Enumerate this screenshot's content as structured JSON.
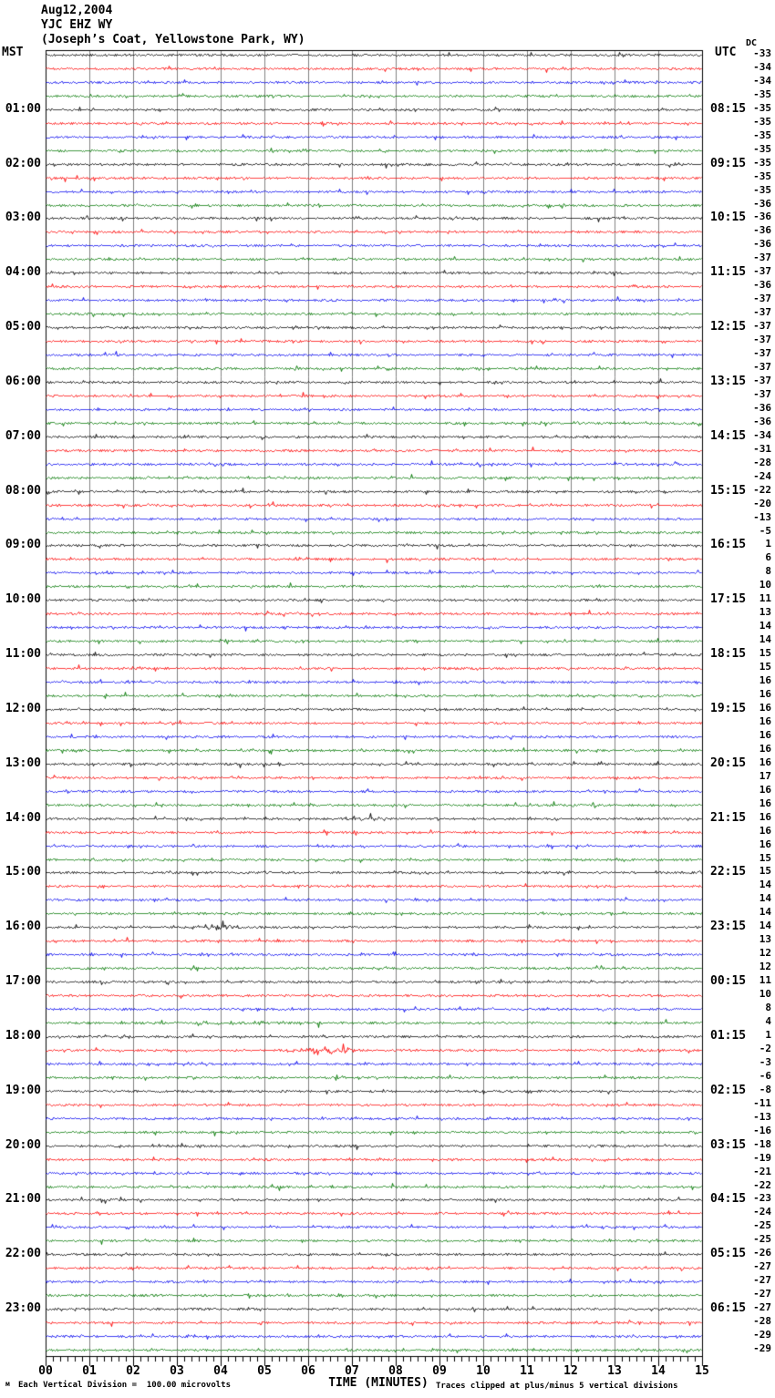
{
  "title": {
    "date": "Aug12,2004",
    "station": "YJC EHZ WY",
    "location": "(Joseph’s Coat, Yellowstone Park, WY)"
  },
  "header": {
    "left": "MST",
    "right": "UTC",
    "dc": "DC"
  },
  "x_axis": {
    "title": "TIME (MINUTES)",
    "ticks": [
      "00",
      "01",
      "02",
      "03",
      "04",
      "05",
      "06",
      "07",
      "08",
      "09",
      "10",
      "11",
      "12",
      "13",
      "14",
      "15"
    ]
  },
  "footer": {
    "scale_note": "Each Vertical Division =  100.00 microvolts",
    "clip_note": "Traces clipped at plus/minus 5 vertical divisions",
    "corner_mark": "м"
  },
  "colors": {
    "black": "#000000",
    "red": "#ff0000",
    "blue": "#0000ee",
    "green": "#007700",
    "grid": "#808080",
    "border": "#000000",
    "background": "#ffffff"
  },
  "chart_data": {
    "type": "line",
    "x_range_minutes": [
      0,
      15
    ],
    "lines_per_hour": 4,
    "trace_color_cycle": [
      "black",
      "red",
      "blue",
      "green"
    ],
    "rows": [
      {
        "color": "black",
        "mst": "",
        "utc": "",
        "dc": -33
      },
      {
        "color": "red",
        "mst": "",
        "utc": "",
        "dc": -34
      },
      {
        "color": "blue",
        "mst": "",
        "utc": "",
        "dc": -34
      },
      {
        "color": "green",
        "mst": "",
        "utc": "",
        "dc": -35
      },
      {
        "color": "black",
        "mst": "01:00",
        "utc": "08:15",
        "dc": -35
      },
      {
        "color": "red",
        "mst": "",
        "utc": "",
        "dc": -35
      },
      {
        "color": "blue",
        "mst": "",
        "utc": "",
        "dc": -35
      },
      {
        "color": "green",
        "mst": "",
        "utc": "",
        "dc": -35
      },
      {
        "color": "black",
        "mst": "02:00",
        "utc": "09:15",
        "dc": -35
      },
      {
        "color": "red",
        "mst": "",
        "utc": "",
        "dc": -35
      },
      {
        "color": "blue",
        "mst": "",
        "utc": "",
        "dc": -35
      },
      {
        "color": "green",
        "mst": "",
        "utc": "",
        "dc": -36
      },
      {
        "color": "black",
        "mst": "03:00",
        "utc": "10:15",
        "dc": -36
      },
      {
        "color": "red",
        "mst": "",
        "utc": "",
        "dc": -36
      },
      {
        "color": "blue",
        "mst": "",
        "utc": "",
        "dc": -36
      },
      {
        "color": "green",
        "mst": "",
        "utc": "",
        "dc": -37
      },
      {
        "color": "black",
        "mst": "04:00",
        "utc": "11:15",
        "dc": -37
      },
      {
        "color": "red",
        "mst": "",
        "utc": "",
        "dc": -36
      },
      {
        "color": "blue",
        "mst": "",
        "utc": "",
        "dc": -37
      },
      {
        "color": "green",
        "mst": "",
        "utc": "",
        "dc": -37
      },
      {
        "color": "black",
        "mst": "05:00",
        "utc": "12:15",
        "dc": -37
      },
      {
        "color": "red",
        "mst": "",
        "utc": "",
        "dc": -37
      },
      {
        "color": "blue",
        "mst": "",
        "utc": "",
        "dc": -37
      },
      {
        "color": "green",
        "mst": "",
        "utc": "",
        "dc": -37
      },
      {
        "color": "black",
        "mst": "06:00",
        "utc": "13:15",
        "dc": -37
      },
      {
        "color": "red",
        "mst": "",
        "utc": "",
        "dc": -37
      },
      {
        "color": "blue",
        "mst": "",
        "utc": "",
        "dc": -36
      },
      {
        "color": "green",
        "mst": "",
        "utc": "",
        "dc": -36
      },
      {
        "color": "black",
        "mst": "07:00",
        "utc": "14:15",
        "dc": -34
      },
      {
        "color": "red",
        "mst": "",
        "utc": "",
        "dc": -31
      },
      {
        "color": "blue",
        "mst": "",
        "utc": "",
        "dc": -28
      },
      {
        "color": "green",
        "mst": "",
        "utc": "",
        "dc": -24
      },
      {
        "color": "black",
        "mst": "08:00",
        "utc": "15:15",
        "dc": -22
      },
      {
        "color": "red",
        "mst": "",
        "utc": "",
        "dc": -20
      },
      {
        "color": "blue",
        "mst": "",
        "utc": "",
        "dc": -13
      },
      {
        "color": "green",
        "mst": "",
        "utc": "",
        "dc": -5
      },
      {
        "color": "black",
        "mst": "09:00",
        "utc": "16:15",
        "dc": 1
      },
      {
        "color": "red",
        "mst": "",
        "utc": "",
        "dc": 6
      },
      {
        "color": "blue",
        "mst": "",
        "utc": "",
        "dc": 8
      },
      {
        "color": "green",
        "mst": "",
        "utc": "",
        "dc": 10
      },
      {
        "color": "black",
        "mst": "10:00",
        "utc": "17:15",
        "dc": 11
      },
      {
        "color": "red",
        "mst": "",
        "utc": "",
        "dc": 13
      },
      {
        "color": "blue",
        "mst": "",
        "utc": "",
        "dc": 14
      },
      {
        "color": "green",
        "mst": "",
        "utc": "",
        "dc": 14
      },
      {
        "color": "black",
        "mst": "11:00",
        "utc": "18:15",
        "dc": 15
      },
      {
        "color": "red",
        "mst": "",
        "utc": "",
        "dc": 15
      },
      {
        "color": "blue",
        "mst": "",
        "utc": "",
        "dc": 16
      },
      {
        "color": "green",
        "mst": "",
        "utc": "",
        "dc": 16
      },
      {
        "color": "black",
        "mst": "12:00",
        "utc": "19:15",
        "dc": 16
      },
      {
        "color": "red",
        "mst": "",
        "utc": "",
        "dc": 16
      },
      {
        "color": "blue",
        "mst": "",
        "utc": "",
        "dc": 16
      },
      {
        "color": "green",
        "mst": "",
        "utc": "",
        "dc": 16
      },
      {
        "color": "black",
        "mst": "13:00",
        "utc": "20:15",
        "dc": 16
      },
      {
        "color": "red",
        "mst": "",
        "utc": "",
        "dc": 17
      },
      {
        "color": "blue",
        "mst": "",
        "utc": "",
        "dc": 16
      },
      {
        "color": "green",
        "mst": "",
        "utc": "",
        "dc": 16
      },
      {
        "color": "black",
        "mst": "14:00",
        "utc": "21:15",
        "dc": 16
      },
      {
        "color": "red",
        "mst": "",
        "utc": "",
        "dc": 16
      },
      {
        "color": "blue",
        "mst": "",
        "utc": "",
        "dc": 16
      },
      {
        "color": "green",
        "mst": "",
        "utc": "",
        "dc": 15
      },
      {
        "color": "black",
        "mst": "15:00",
        "utc": "22:15",
        "dc": 15
      },
      {
        "color": "red",
        "mst": "",
        "utc": "",
        "dc": 14
      },
      {
        "color": "blue",
        "mst": "",
        "utc": "",
        "dc": 14
      },
      {
        "color": "green",
        "mst": "",
        "utc": "",
        "dc": 14
      },
      {
        "color": "black",
        "mst": "16:00",
        "utc": "23:15",
        "dc": 14
      },
      {
        "color": "red",
        "mst": "",
        "utc": "",
        "dc": 13
      },
      {
        "color": "blue",
        "mst": "",
        "utc": "",
        "dc": 12
      },
      {
        "color": "green",
        "mst": "",
        "utc": "",
        "dc": 12
      },
      {
        "color": "black",
        "mst": "17:00",
        "utc": "00:15",
        "dc": 11
      },
      {
        "color": "red",
        "mst": "",
        "utc": "",
        "dc": 10
      },
      {
        "color": "blue",
        "mst": "",
        "utc": "",
        "dc": 8
      },
      {
        "color": "green",
        "mst": "",
        "utc": "",
        "dc": 4
      },
      {
        "color": "black",
        "mst": "18:00",
        "utc": "01:15",
        "dc": 1
      },
      {
        "color": "red",
        "mst": "",
        "utc": "",
        "dc": -2
      },
      {
        "color": "blue",
        "mst": "",
        "utc": "",
        "dc": -3
      },
      {
        "color": "green",
        "mst": "",
        "utc": "",
        "dc": -6
      },
      {
        "color": "black",
        "mst": "19:00",
        "utc": "02:15",
        "dc": -8
      },
      {
        "color": "red",
        "mst": "",
        "utc": "",
        "dc": -11
      },
      {
        "color": "blue",
        "mst": "",
        "utc": "",
        "dc": -13
      },
      {
        "color": "green",
        "mst": "",
        "utc": "",
        "dc": -16
      },
      {
        "color": "black",
        "mst": "20:00",
        "utc": "03:15",
        "dc": -18
      },
      {
        "color": "red",
        "mst": "",
        "utc": "",
        "dc": -19
      },
      {
        "color": "blue",
        "mst": "",
        "utc": "",
        "dc": -21
      },
      {
        "color": "green",
        "mst": "",
        "utc": "",
        "dc": -22
      },
      {
        "color": "black",
        "mst": "21:00",
        "utc": "04:15",
        "dc": -23
      },
      {
        "color": "red",
        "mst": "",
        "utc": "",
        "dc": -24
      },
      {
        "color": "blue",
        "mst": "",
        "utc": "",
        "dc": -25
      },
      {
        "color": "green",
        "mst": "",
        "utc": "",
        "dc": -25
      },
      {
        "color": "black",
        "mst": "22:00",
        "utc": "05:15",
        "dc": -26
      },
      {
        "color": "red",
        "mst": "",
        "utc": "",
        "dc": -27
      },
      {
        "color": "blue",
        "mst": "",
        "utc": "",
        "dc": -27
      },
      {
        "color": "green",
        "mst": "",
        "utc": "",
        "dc": -27
      },
      {
        "color": "black",
        "mst": "23:00",
        "utc": "06:15",
        "dc": -27
      },
      {
        "color": "red",
        "mst": "",
        "utc": "",
        "dc": -28
      },
      {
        "color": "blue",
        "mst": "",
        "utc": "",
        "dc": -29
      },
      {
        "color": "green",
        "mst": "",
        "utc": "",
        "dc": -29
      }
    ],
    "events": [
      {
        "row": 57,
        "start_min": 6.7,
        "end_min": 7.9,
        "amp": 2.2
      },
      {
        "row": 65,
        "start_min": 3.3,
        "end_min": 4.5,
        "amp": 2.6
      },
      {
        "row": 72,
        "start_min": 3.0,
        "end_min": 7.0,
        "amp": 1.5
      },
      {
        "row": 74,
        "start_min": 5.3,
        "end_min": 7.4,
        "amp": 3.2
      }
    ]
  }
}
